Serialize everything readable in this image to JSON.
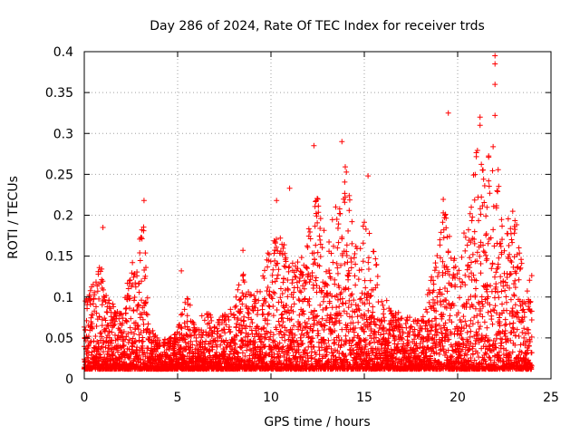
{
  "chart_data": {
    "type": "scatter",
    "title": "Day 286 of 2024, Rate Of TEC Index for receiver trds",
    "xlabel": "GPS time / hours",
    "ylabel": "ROTI / TECUs",
    "xlim": [
      0,
      25
    ],
    "ylim": [
      0,
      0.4
    ],
    "x_ticks": [
      0,
      5,
      10,
      15,
      20,
      25
    ],
    "y_ticks": [
      0,
      0.05,
      0.1,
      0.15,
      0.2,
      0.25,
      0.3,
      0.35,
      0.4
    ],
    "x_tick_labels": [
      "0",
      "5",
      "10",
      "15",
      "20",
      "25"
    ],
    "y_tick_labels": [
      "0",
      "0.05",
      "0.1",
      "0.15",
      "0.2",
      "0.25",
      "0.3",
      "0.35",
      "0.4"
    ],
    "grid": true,
    "marker": "+",
    "marker_color": "#ff0000",
    "series": [
      {
        "name": "ROTI",
        "envelope": [
          [
            0.0,
            0.11
          ],
          [
            0.5,
            0.12
          ],
          [
            0.9,
            0.16
          ],
          [
            1.2,
            0.1
          ],
          [
            2.0,
            0.08
          ],
          [
            2.5,
            0.14
          ],
          [
            3.2,
            0.2
          ],
          [
            3.5,
            0.07
          ],
          [
            4.0,
            0.05
          ],
          [
            4.5,
            0.05
          ],
          [
            5.0,
            0.06
          ],
          [
            5.5,
            0.11
          ],
          [
            6.0,
            0.06
          ],
          [
            6.5,
            0.09
          ],
          [
            7.0,
            0.07
          ],
          [
            8.0,
            0.09
          ],
          [
            8.5,
            0.14
          ],
          [
            9.0,
            0.1
          ],
          [
            9.5,
            0.12
          ],
          [
            10.0,
            0.17
          ],
          [
            10.5,
            0.19
          ],
          [
            11.0,
            0.14
          ],
          [
            11.5,
            0.15
          ],
          [
            12.0,
            0.18
          ],
          [
            12.5,
            0.24
          ],
          [
            13.0,
            0.16
          ],
          [
            13.5,
            0.22
          ],
          [
            14.0,
            0.27
          ],
          [
            14.5,
            0.16
          ],
          [
            15.0,
            0.2
          ],
          [
            15.5,
            0.16
          ],
          [
            16.0,
            0.1
          ],
          [
            17.0,
            0.08
          ],
          [
            18.0,
            0.07
          ],
          [
            18.5,
            0.12
          ],
          [
            19.0,
            0.16
          ],
          [
            19.3,
            0.25
          ],
          [
            19.6,
            0.2
          ],
          [
            20.0,
            0.14
          ],
          [
            20.5,
            0.2
          ],
          [
            21.0,
            0.29
          ],
          [
            21.5,
            0.26
          ],
          [
            22.0,
            0.3
          ],
          [
            22.5,
            0.18
          ],
          [
            23.0,
            0.22
          ],
          [
            23.5,
            0.13
          ],
          [
            24.0,
            0.14
          ]
        ],
        "outliers": [
          [
            22.0,
            0.395
          ],
          [
            22.0,
            0.385
          ],
          [
            22.0,
            0.36
          ],
          [
            22.0,
            0.322
          ],
          [
            19.5,
            0.325
          ],
          [
            21.2,
            0.32
          ],
          [
            21.2,
            0.31
          ],
          [
            13.8,
            0.29
          ],
          [
            12.3,
            0.285
          ],
          [
            3.2,
            0.218
          ],
          [
            10.3,
            0.218
          ],
          [
            11.0,
            0.233
          ],
          [
            5.2,
            0.132
          ],
          [
            1.0,
            0.185
          ],
          [
            8.5,
            0.157
          ],
          [
            15.2,
            0.248
          ]
        ]
      }
    ]
  }
}
